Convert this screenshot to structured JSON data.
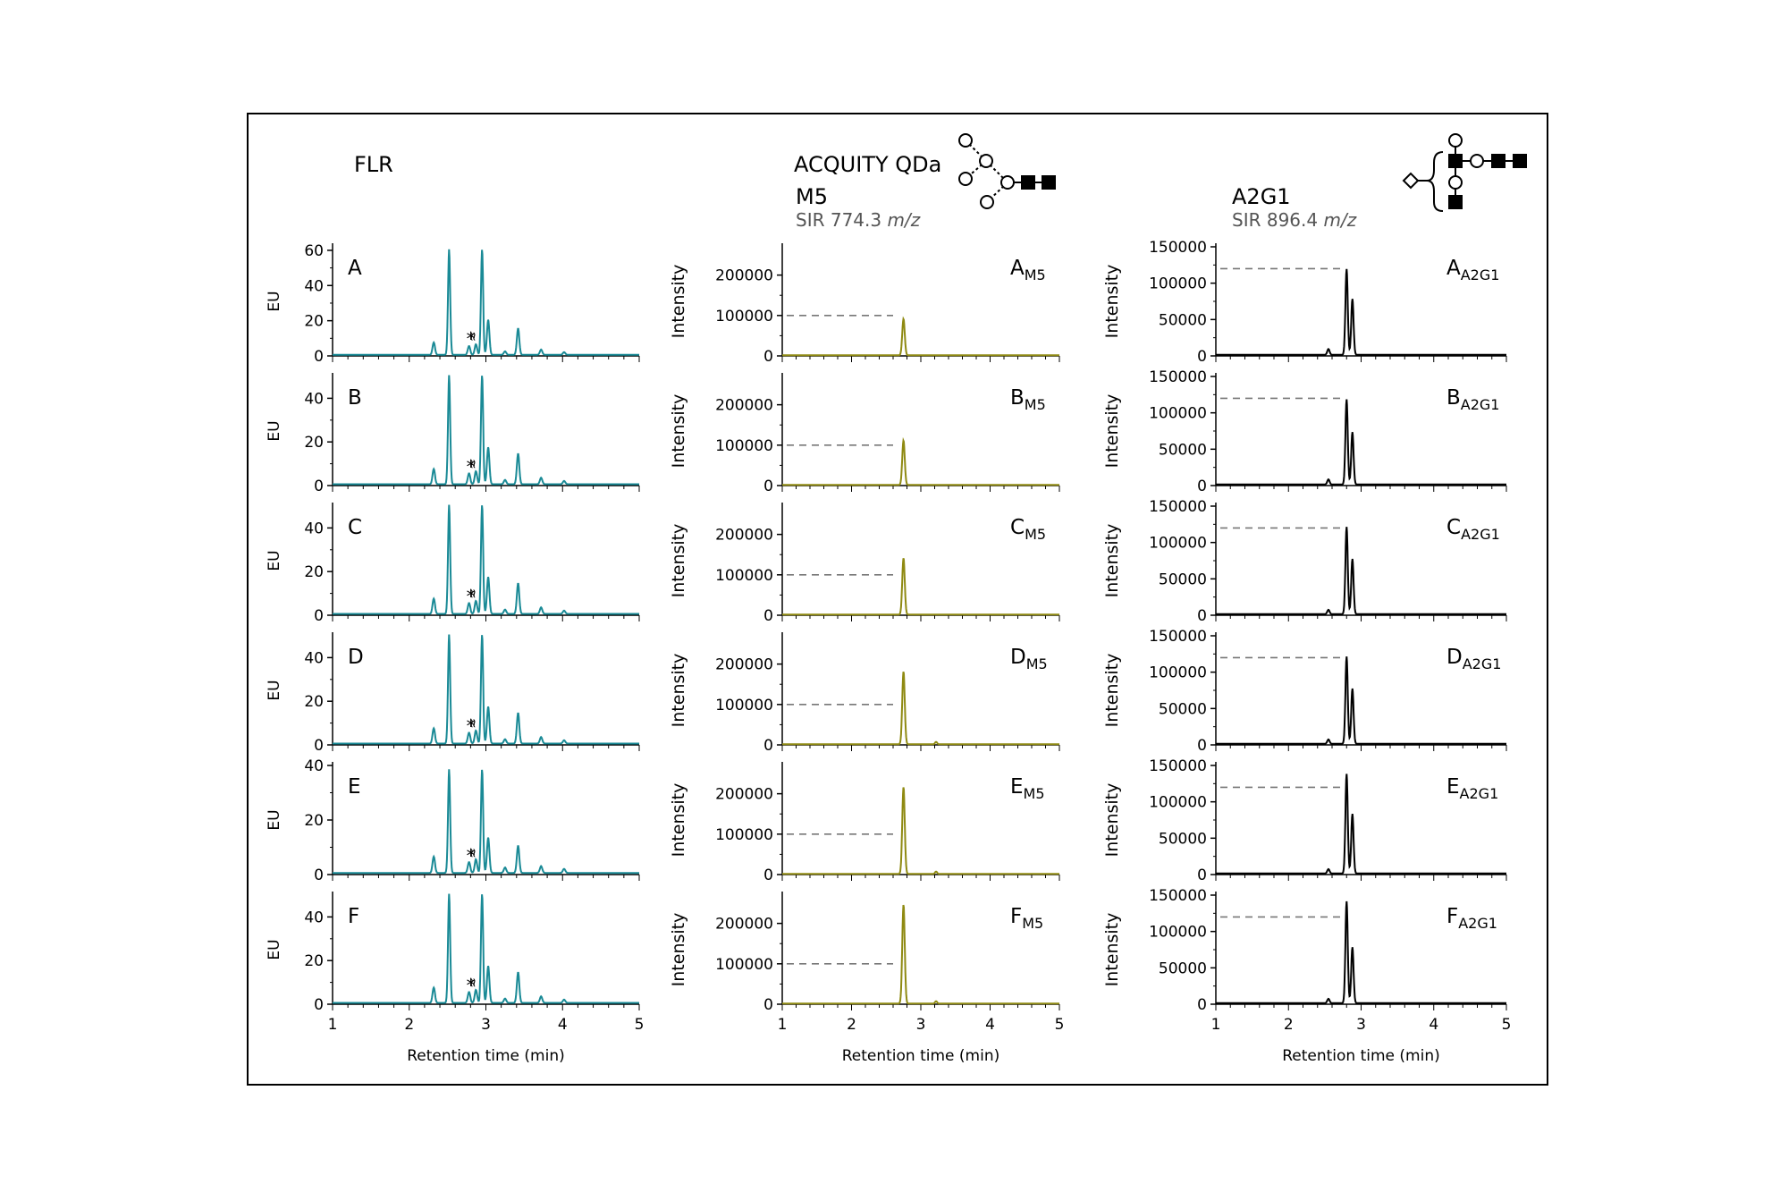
{
  "headers": {
    "flr": "FLR",
    "qda": "ACQUITY QDa",
    "m5": "M5",
    "m5_sir": "SIR 774.3",
    "a2g1": "A2G1",
    "a2g1_sir": "SIR 896.4",
    "mz_unit": "m/z"
  },
  "colors": {
    "flr": "#1a8a96",
    "m5": "#8f8a12",
    "a2g1": "#000000",
    "ref_line": "#777777"
  },
  "asterisk_label": "*",
  "chart_data": [
    {
      "type": "line",
      "panel": "FLR",
      "xlabel": "Retention time (min)",
      "ylabel": "EU",
      "x_range": [
        1,
        5
      ],
      "x_ticks": [
        "1",
        "2",
        "3",
        "4",
        "5"
      ],
      "letters": [
        "A",
        "B",
        "C",
        "D",
        "E",
        "F"
      ],
      "y_ticks": [
        [
          "0",
          "20",
          "40",
          "60"
        ],
        [
          "0",
          "20",
          "40"
        ],
        [
          "0",
          "20",
          "40"
        ],
        [
          "0",
          "20",
          "40"
        ],
        [
          "0",
          "20",
          "40"
        ],
        [
          "0",
          "20",
          "40"
        ]
      ],
      "y_ranges": [
        [
          0,
          62
        ],
        [
          0,
          50
        ],
        [
          0,
          50
        ],
        [
          0,
          50
        ],
        [
          0,
          40
        ],
        [
          0,
          50
        ]
      ],
      "peaks_rt": [
        2.32,
        2.52,
        2.78,
        2.87,
        2.95,
        3.03,
        3.25,
        3.42,
        3.72,
        4.02
      ],
      "peak_heights": [
        [
          7,
          60,
          5,
          6,
          60,
          20,
          2,
          15,
          3,
          1.5
        ],
        [
          7,
          50,
          5,
          6,
          50,
          17,
          2,
          14,
          3,
          1.5
        ],
        [
          7,
          50,
          5,
          6,
          50,
          17,
          2,
          14,
          3,
          1.5
        ],
        [
          7,
          50,
          5,
          6,
          50,
          17,
          2,
          14,
          3,
          1.5
        ],
        [
          6,
          38,
          4,
          5,
          38,
          13,
          2,
          10,
          2.5,
          1.5
        ],
        [
          7,
          50,
          5,
          6,
          50,
          17,
          2,
          14,
          3,
          1.5
        ]
      ]
    },
    {
      "type": "line",
      "panel": "M5",
      "xlabel": "Retention time (min)",
      "ylabel": "Intensity",
      "x_range": [
        1,
        5
      ],
      "x_ticks": [
        "1",
        "2",
        "3",
        "4",
        "5"
      ],
      "letters": [
        "A",
        "B",
        "C",
        "D",
        "E",
        "F"
      ],
      "subscript": "M5",
      "y_ticks": [
        "0",
        "100000",
        "200000"
      ],
      "y_range": [
        0,
        270000
      ],
      "reference_level": 100000,
      "peak_rt": 2.75,
      "peak_heights": [
        90000,
        110000,
        140000,
        180000,
        215000,
        245000
      ]
    },
    {
      "type": "line",
      "panel": "A2G1",
      "xlabel": "Retention time (min)",
      "ylabel": "Intensity",
      "x_range": [
        1,
        5
      ],
      "x_ticks": [
        "1",
        "2",
        "3",
        "4",
        "5"
      ],
      "letters": [
        "A",
        "B",
        "C",
        "D",
        "E",
        "F"
      ],
      "subscript": "A2G1",
      "y_ticks": [
        "0",
        "50000",
        "100000",
        "150000"
      ],
      "y_range": [
        0,
        150000
      ],
      "reference_level": 120000,
      "peaks_rt": [
        2.55,
        2.8,
        2.88
      ],
      "peak_heights": [
        [
          8000,
          118000,
          77000
        ],
        [
          7000,
          117000,
          72000
        ],
        [
          6000,
          120000,
          76000
        ],
        [
          6000,
          120000,
          76000
        ],
        [
          6000,
          137000,
          82000
        ],
        [
          6000,
          140000,
          77000
        ]
      ]
    }
  ]
}
